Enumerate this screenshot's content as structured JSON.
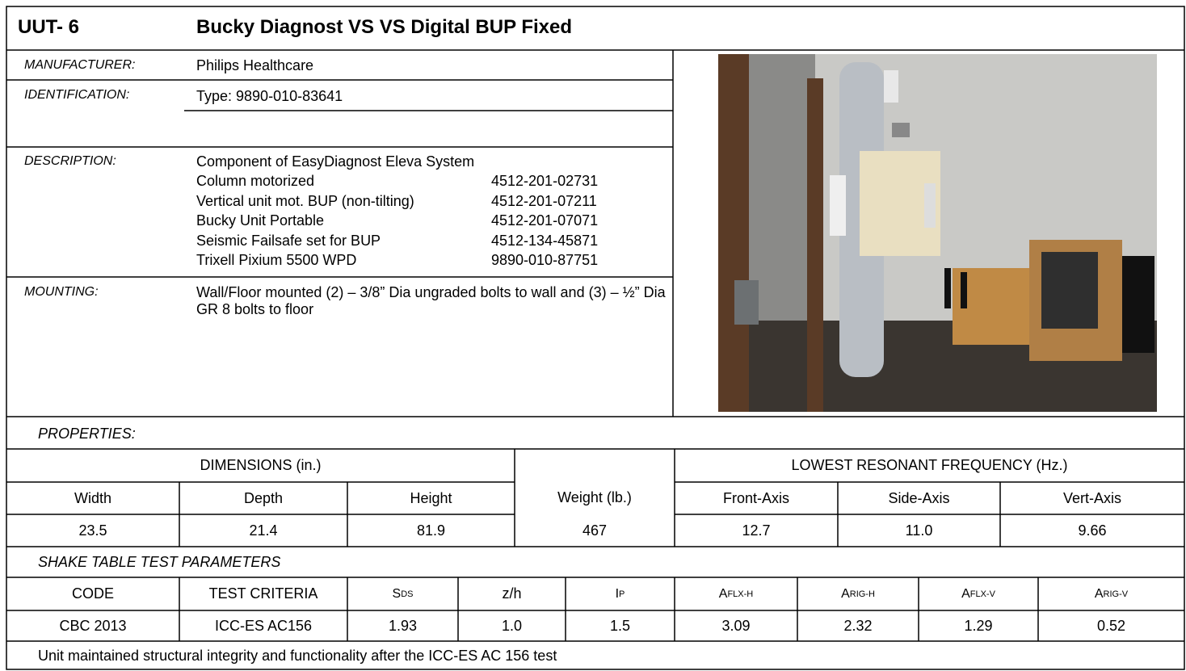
{
  "header": {
    "id": "UUT- 6",
    "title": "Bucky Diagnost VS VS Digital BUP Fixed"
  },
  "info": {
    "manufacturer": {
      "label": "MANUFACTURER:",
      "value": "Philips Healthcare"
    },
    "identification": {
      "label": "IDENTIFICATION:",
      "value": "Type: 9890-010-83641"
    },
    "description": {
      "label": "DESCRIPTION:",
      "intro": "Component of EasyDiagnost Eleva System",
      "items": [
        {
          "name": "Column motorized",
          "code": "4512-201-02731"
        },
        {
          "name": "Vertical unit mot. BUP (non-tilting)",
          "code": "4512-201-07211"
        },
        {
          "name": "Bucky Unit Portable",
          "code": "4512-201-07071"
        },
        {
          "name": "Seismic Failsafe set for BUP",
          "code": "4512-134-45871"
        },
        {
          "name": "Trixell Pixium 5500 WPD",
          "code": "9890-010-87751"
        }
      ]
    },
    "mounting": {
      "label": "MOUNTING:",
      "value": "Wall/Floor mounted (2) – 3/8” Dia ungraded bolts to wall and (3) – ½” Dia GR 8 bolts to floor"
    }
  },
  "properties": {
    "label": "PROPERTIES:",
    "dimensions_header": "DIMENSIONS (in.)",
    "weight_header": "Weight (lb.)",
    "frequency_header": "LOWEST RESONANT FREQUENCY (Hz.)",
    "columns": [
      "Width",
      "Depth",
      "Height",
      "Front-Axis",
      "Side-Axis",
      "Vert-Axis"
    ],
    "values": {
      "width": "23.5",
      "depth": "21.4",
      "height": "81.9",
      "weight": "467",
      "front": "12.7",
      "side": "11.0",
      "vert": "9.66"
    }
  },
  "shake_table": {
    "label": "SHAKE TABLE TEST PARAMETERS",
    "headers": [
      {
        "main": "CODE"
      },
      {
        "main": "TEST CRITERIA"
      },
      {
        "main": "S",
        "sub": "DS"
      },
      {
        "main": "z/h"
      },
      {
        "main": "I",
        "sub": "P"
      },
      {
        "main": "A",
        "sub": "FLX-H"
      },
      {
        "main": "A",
        "sub": "RIG-H"
      },
      {
        "main": "A",
        "sub": "FLX-V"
      },
      {
        "main": "A",
        "sub": "RIG-V"
      }
    ],
    "row": [
      "CBC 2013",
      "ICC-ES AC156",
      "1.93",
      "1.0",
      "1.5",
      "3.09",
      "2.32",
      "1.29",
      "0.52"
    ],
    "note": "Unit maintained structural integrity and functionality after the ICC-ES AC 156 test"
  }
}
